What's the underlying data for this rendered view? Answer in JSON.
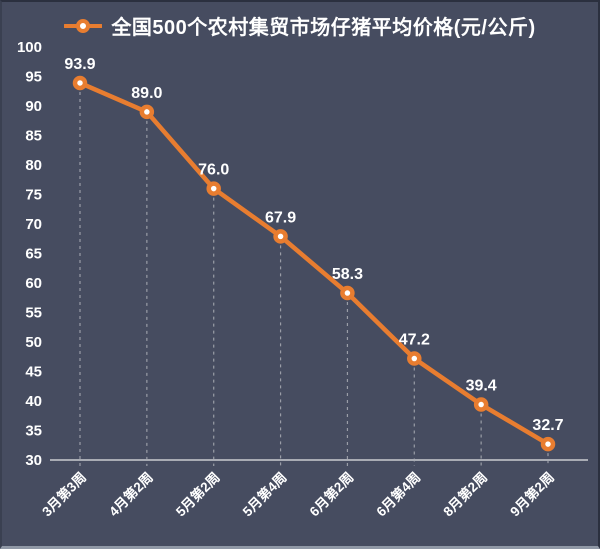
{
  "legend": {
    "title": "全国500个农村集贸市场仔猪平均价格(元/公斤)",
    "marker_icon": "line-with-dot"
  },
  "colors": {
    "background": "#464C60",
    "line": "#E87D30",
    "marker_fill": "#FFFFFF",
    "marker_ring": "#E87D30",
    "axis": "#A9ACB4",
    "gridline": "#A9ACB4",
    "text": "#FFFFFF"
  },
  "chart_data": {
    "type": "line",
    "title": "全国500个农村集贸市场仔猪平均价格(元/公斤)",
    "categories": [
      "3月第3周",
      "4月第2周",
      "5月第2周",
      "5月第4周",
      "6月第2周",
      "6月第4周",
      "8月第2周",
      "9月第2周"
    ],
    "values": [
      93.9,
      89.0,
      76.0,
      67.9,
      58.3,
      47.2,
      39.4,
      32.7
    ],
    "value_labels": [
      "93.9",
      "89.0",
      "76.0",
      "67.9",
      "58.3",
      "47.2",
      "39.4",
      "32.7"
    ],
    "xlabel": "",
    "ylabel": "",
    "ylim": [
      30,
      100
    ],
    "ytick_step": 5,
    "ytick_labels": [
      "30",
      "35",
      "40",
      "45",
      "50",
      "55",
      "60",
      "65",
      "70",
      "75",
      "80",
      "85",
      "90",
      "95",
      "100"
    ],
    "grid": "dashed-droplines",
    "data_labels": true,
    "legend_position": "top-center",
    "x_label_rotation_deg": -45
  }
}
